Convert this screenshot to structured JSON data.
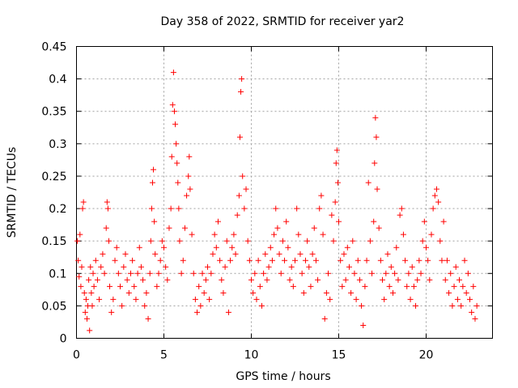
{
  "chart_data": {
    "type": "scatter",
    "title": "Day 358 of 2022, SRMTID for receiver yar2",
    "xlabel": "GPS time / hours",
    "ylabel": "SRMTID / TECUs",
    "xlim": [
      0,
      24
    ],
    "ylim": [
      0,
      0.45
    ],
    "xticks": [
      "0",
      "5",
      "10",
      "15",
      "20"
    ],
    "yticks": [
      "0",
      "0.05",
      "0.1",
      "0.15",
      "0.2",
      "0.25",
      "0.3",
      "0.35",
      "0.4",
      "0.45"
    ],
    "grid": true,
    "marker": "+",
    "color": "#ff0000",
    "series": [
      {
        "name": "yar2",
        "points": [
          [
            0.05,
            0.15
          ],
          [
            0.1,
            0.12
          ],
          [
            0.15,
            0.095
          ],
          [
            0.2,
            0.16
          ],
          [
            0.25,
            0.08
          ],
          [
            0.3,
            0.11
          ],
          [
            0.35,
            0.2
          ],
          [
            0.4,
            0.21
          ],
          [
            0.45,
            0.07
          ],
          [
            0.5,
            0.04
          ],
          [
            0.55,
            0.06
          ],
          [
            0.6,
            0.03
          ],
          [
            0.65,
            0.05
          ],
          [
            0.7,
            0.09
          ],
          [
            0.75,
            0.012
          ],
          [
            0.8,
            0.11
          ],
          [
            0.85,
            0.07
          ],
          [
            0.9,
            0.05
          ],
          [
            0.95,
            0.1
          ],
          [
            1.0,
            0.08
          ],
          [
            1.1,
            0.12
          ],
          [
            1.2,
            0.09
          ],
          [
            1.3,
            0.06
          ],
          [
            1.4,
            0.11
          ],
          [
            1.5,
            0.13
          ],
          [
            1.6,
            0.1
          ],
          [
            1.7,
            0.17
          ],
          [
            1.75,
            0.21
          ],
          [
            1.8,
            0.2
          ],
          [
            1.85,
            0.15
          ],
          [
            1.9,
            0.08
          ],
          [
            2.0,
            0.04
          ],
          [
            2.1,
            0.06
          ],
          [
            2.2,
            0.12
          ],
          [
            2.3,
            0.14
          ],
          [
            2.4,
            0.1
          ],
          [
            2.5,
            0.08
          ],
          [
            2.6,
            0.05
          ],
          [
            2.7,
            0.11
          ],
          [
            2.8,
            0.13
          ],
          [
            2.9,
            0.09
          ],
          [
            3.0,
            0.07
          ],
          [
            3.1,
            0.1
          ],
          [
            3.2,
            0.12
          ],
          [
            3.3,
            0.08
          ],
          [
            3.4,
            0.06
          ],
          [
            3.5,
            0.1
          ],
          [
            3.6,
            0.14
          ],
          [
            3.7,
            0.11
          ],
          [
            3.8,
            0.09
          ],
          [
            3.9,
            0.05
          ],
          [
            4.0,
            0.07
          ],
          [
            4.1,
            0.03
          ],
          [
            4.2,
            0.1
          ],
          [
            4.25,
            0.15
          ],
          [
            4.3,
            0.2
          ],
          [
            4.35,
            0.24
          ],
          [
            4.4,
            0.26
          ],
          [
            4.45,
            0.18
          ],
          [
            4.5,
            0.13
          ],
          [
            4.6,
            0.08
          ],
          [
            4.7,
            0.1
          ],
          [
            4.8,
            0.12
          ],
          [
            4.9,
            0.15
          ],
          [
            5.0,
            0.14
          ],
          [
            5.1,
            0.11
          ],
          [
            5.2,
            0.09
          ],
          [
            5.3,
            0.17
          ],
          [
            5.4,
            0.2
          ],
          [
            5.45,
            0.28
          ],
          [
            5.5,
            0.36
          ],
          [
            5.55,
            0.41
          ],
          [
            5.6,
            0.35
          ],
          [
            5.65,
            0.33
          ],
          [
            5.7,
            0.3
          ],
          [
            5.75,
            0.27
          ],
          [
            5.8,
            0.24
          ],
          [
            5.85,
            0.2
          ],
          [
            5.9,
            0.15
          ],
          [
            6.0,
            0.1
          ],
          [
            6.1,
            0.12
          ],
          [
            6.2,
            0.17
          ],
          [
            6.3,
            0.22
          ],
          [
            6.4,
            0.25
          ],
          [
            6.45,
            0.28
          ],
          [
            6.5,
            0.23
          ],
          [
            6.6,
            0.16
          ],
          [
            6.7,
            0.1
          ],
          [
            6.8,
            0.06
          ],
          [
            6.9,
            0.04
          ],
          [
            7.0,
            0.08
          ],
          [
            7.1,
            0.05
          ],
          [
            7.2,
            0.1
          ],
          [
            7.3,
            0.07
          ],
          [
            7.4,
            0.09
          ],
          [
            7.5,
            0.11
          ],
          [
            7.6,
            0.06
          ],
          [
            7.7,
            0.1
          ],
          [
            7.8,
            0.13
          ],
          [
            7.9,
            0.16
          ],
          [
            8.0,
            0.14
          ],
          [
            8.1,
            0.18
          ],
          [
            8.2,
            0.12
          ],
          [
            8.3,
            0.09
          ],
          [
            8.4,
            0.07
          ],
          [
            8.5,
            0.11
          ],
          [
            8.6,
            0.15
          ],
          [
            8.7,
            0.04
          ],
          [
            8.8,
            0.12
          ],
          [
            8.9,
            0.14
          ],
          [
            9.0,
            0.16
          ],
          [
            9.1,
            0.13
          ],
          [
            9.2,
            0.19
          ],
          [
            9.3,
            0.22
          ],
          [
            9.35,
            0.31
          ],
          [
            9.4,
            0.38
          ],
          [
            9.45,
            0.4
          ],
          [
            9.5,
            0.25
          ],
          [
            9.6,
            0.2
          ],
          [
            9.7,
            0.23
          ],
          [
            9.8,
            0.15
          ],
          [
            9.9,
            0.12
          ],
          [
            10.0,
            0.09
          ],
          [
            10.1,
            0.07
          ],
          [
            10.2,
            0.1
          ],
          [
            10.3,
            0.06
          ],
          [
            10.4,
            0.12
          ],
          [
            10.5,
            0.08
          ],
          [
            10.6,
            0.05
          ],
          [
            10.7,
            0.1
          ],
          [
            10.8,
            0.13
          ],
          [
            10.9,
            0.09
          ],
          [
            11.0,
            0.11
          ],
          [
            11.1,
            0.14
          ],
          [
            11.2,
            0.12
          ],
          [
            11.3,
            0.16
          ],
          [
            11.4,
            0.2
          ],
          [
            11.5,
            0.17
          ],
          [
            11.6,
            0.13
          ],
          [
            11.7,
            0.1
          ],
          [
            11.8,
            0.15
          ],
          [
            11.9,
            0.12
          ],
          [
            12.0,
            0.18
          ],
          [
            12.1,
            0.14
          ],
          [
            12.2,
            0.09
          ],
          [
            12.3,
            0.11
          ],
          [
            12.4,
            0.08
          ],
          [
            12.5,
            0.12
          ],
          [
            12.6,
            0.2
          ],
          [
            12.7,
            0.16
          ],
          [
            12.8,
            0.13
          ],
          [
            12.9,
            0.1
          ],
          [
            13.0,
            0.07
          ],
          [
            13.1,
            0.12
          ],
          [
            13.2,
            0.15
          ],
          [
            13.3,
            0.11
          ],
          [
            13.4,
            0.08
          ],
          [
            13.5,
            0.13
          ],
          [
            13.6,
            0.17
          ],
          [
            13.7,
            0.12
          ],
          [
            13.8,
            0.09
          ],
          [
            13.9,
            0.2
          ],
          [
            14.0,
            0.22
          ],
          [
            14.1,
            0.16
          ],
          [
            14.2,
            0.03
          ],
          [
            14.3,
            0.07
          ],
          [
            14.4,
            0.1
          ],
          [
            14.5,
            0.06
          ],
          [
            14.6,
            0.19
          ],
          [
            14.7,
            0.15
          ],
          [
            14.8,
            0.21
          ],
          [
            14.85,
            0.27
          ],
          [
            14.9,
            0.29
          ],
          [
            14.95,
            0.24
          ],
          [
            15.0,
            0.18
          ],
          [
            15.1,
            0.12
          ],
          [
            15.2,
            0.08
          ],
          [
            15.3,
            0.13
          ],
          [
            15.4,
            0.09
          ],
          [
            15.5,
            0.14
          ],
          [
            15.6,
            0.11
          ],
          [
            15.7,
            0.07
          ],
          [
            15.8,
            0.15
          ],
          [
            15.9,
            0.1
          ],
          [
            16.0,
            0.06
          ],
          [
            16.1,
            0.12
          ],
          [
            16.2,
            0.09
          ],
          [
            16.3,
            0.05
          ],
          [
            16.4,
            0.02
          ],
          [
            16.5,
            0.08
          ],
          [
            16.6,
            0.12
          ],
          [
            16.7,
            0.24
          ],
          [
            16.8,
            0.15
          ],
          [
            16.9,
            0.1
          ],
          [
            17.0,
            0.18
          ],
          [
            17.05,
            0.27
          ],
          [
            17.1,
            0.34
          ],
          [
            17.15,
            0.31
          ],
          [
            17.2,
            0.23
          ],
          [
            17.3,
            0.17
          ],
          [
            17.4,
            0.12
          ],
          [
            17.5,
            0.09
          ],
          [
            17.6,
            0.06
          ],
          [
            17.7,
            0.1
          ],
          [
            17.8,
            0.13
          ],
          [
            17.9,
            0.08
          ],
          [
            18.0,
            0.11
          ],
          [
            18.1,
            0.07
          ],
          [
            18.2,
            0.1
          ],
          [
            18.3,
            0.14
          ],
          [
            18.4,
            0.09
          ],
          [
            18.5,
            0.19
          ],
          [
            18.6,
            0.2
          ],
          [
            18.7,
            0.16
          ],
          [
            18.8,
            0.12
          ],
          [
            18.9,
            0.08
          ],
          [
            19.0,
            0.1
          ],
          [
            19.1,
            0.06
          ],
          [
            19.2,
            0.11
          ],
          [
            19.3,
            0.08
          ],
          [
            19.4,
            0.05
          ],
          [
            19.5,
            0.09
          ],
          [
            19.6,
            0.12
          ],
          [
            19.7,
            0.1
          ],
          [
            19.8,
            0.15
          ],
          [
            19.9,
            0.18
          ],
          [
            20.0,
            0.14
          ],
          [
            20.1,
            0.12
          ],
          [
            20.2,
            0.09
          ],
          [
            20.3,
            0.16
          ],
          [
            20.4,
            0.2
          ],
          [
            20.5,
            0.22
          ],
          [
            20.6,
            0.23
          ],
          [
            20.7,
            0.21
          ],
          [
            20.8,
            0.15
          ],
          [
            20.9,
            0.12
          ],
          [
            21.0,
            0.18
          ],
          [
            21.1,
            0.09
          ],
          [
            21.2,
            0.12
          ],
          [
            21.3,
            0.07
          ],
          [
            21.4,
            0.1
          ],
          [
            21.5,
            0.05
          ],
          [
            21.6,
            0.08
          ],
          [
            21.7,
            0.11
          ],
          [
            21.8,
            0.06
          ],
          [
            21.9,
            0.09
          ],
          [
            22.0,
            0.05
          ],
          [
            22.1,
            0.08
          ],
          [
            22.2,
            0.12
          ],
          [
            22.3,
            0.07
          ],
          [
            22.4,
            0.1
          ],
          [
            22.5,
            0.06
          ],
          [
            22.6,
            0.04
          ],
          [
            22.7,
            0.08
          ],
          [
            22.8,
            0.03
          ],
          [
            22.9,
            0.05
          ]
        ]
      }
    ]
  }
}
